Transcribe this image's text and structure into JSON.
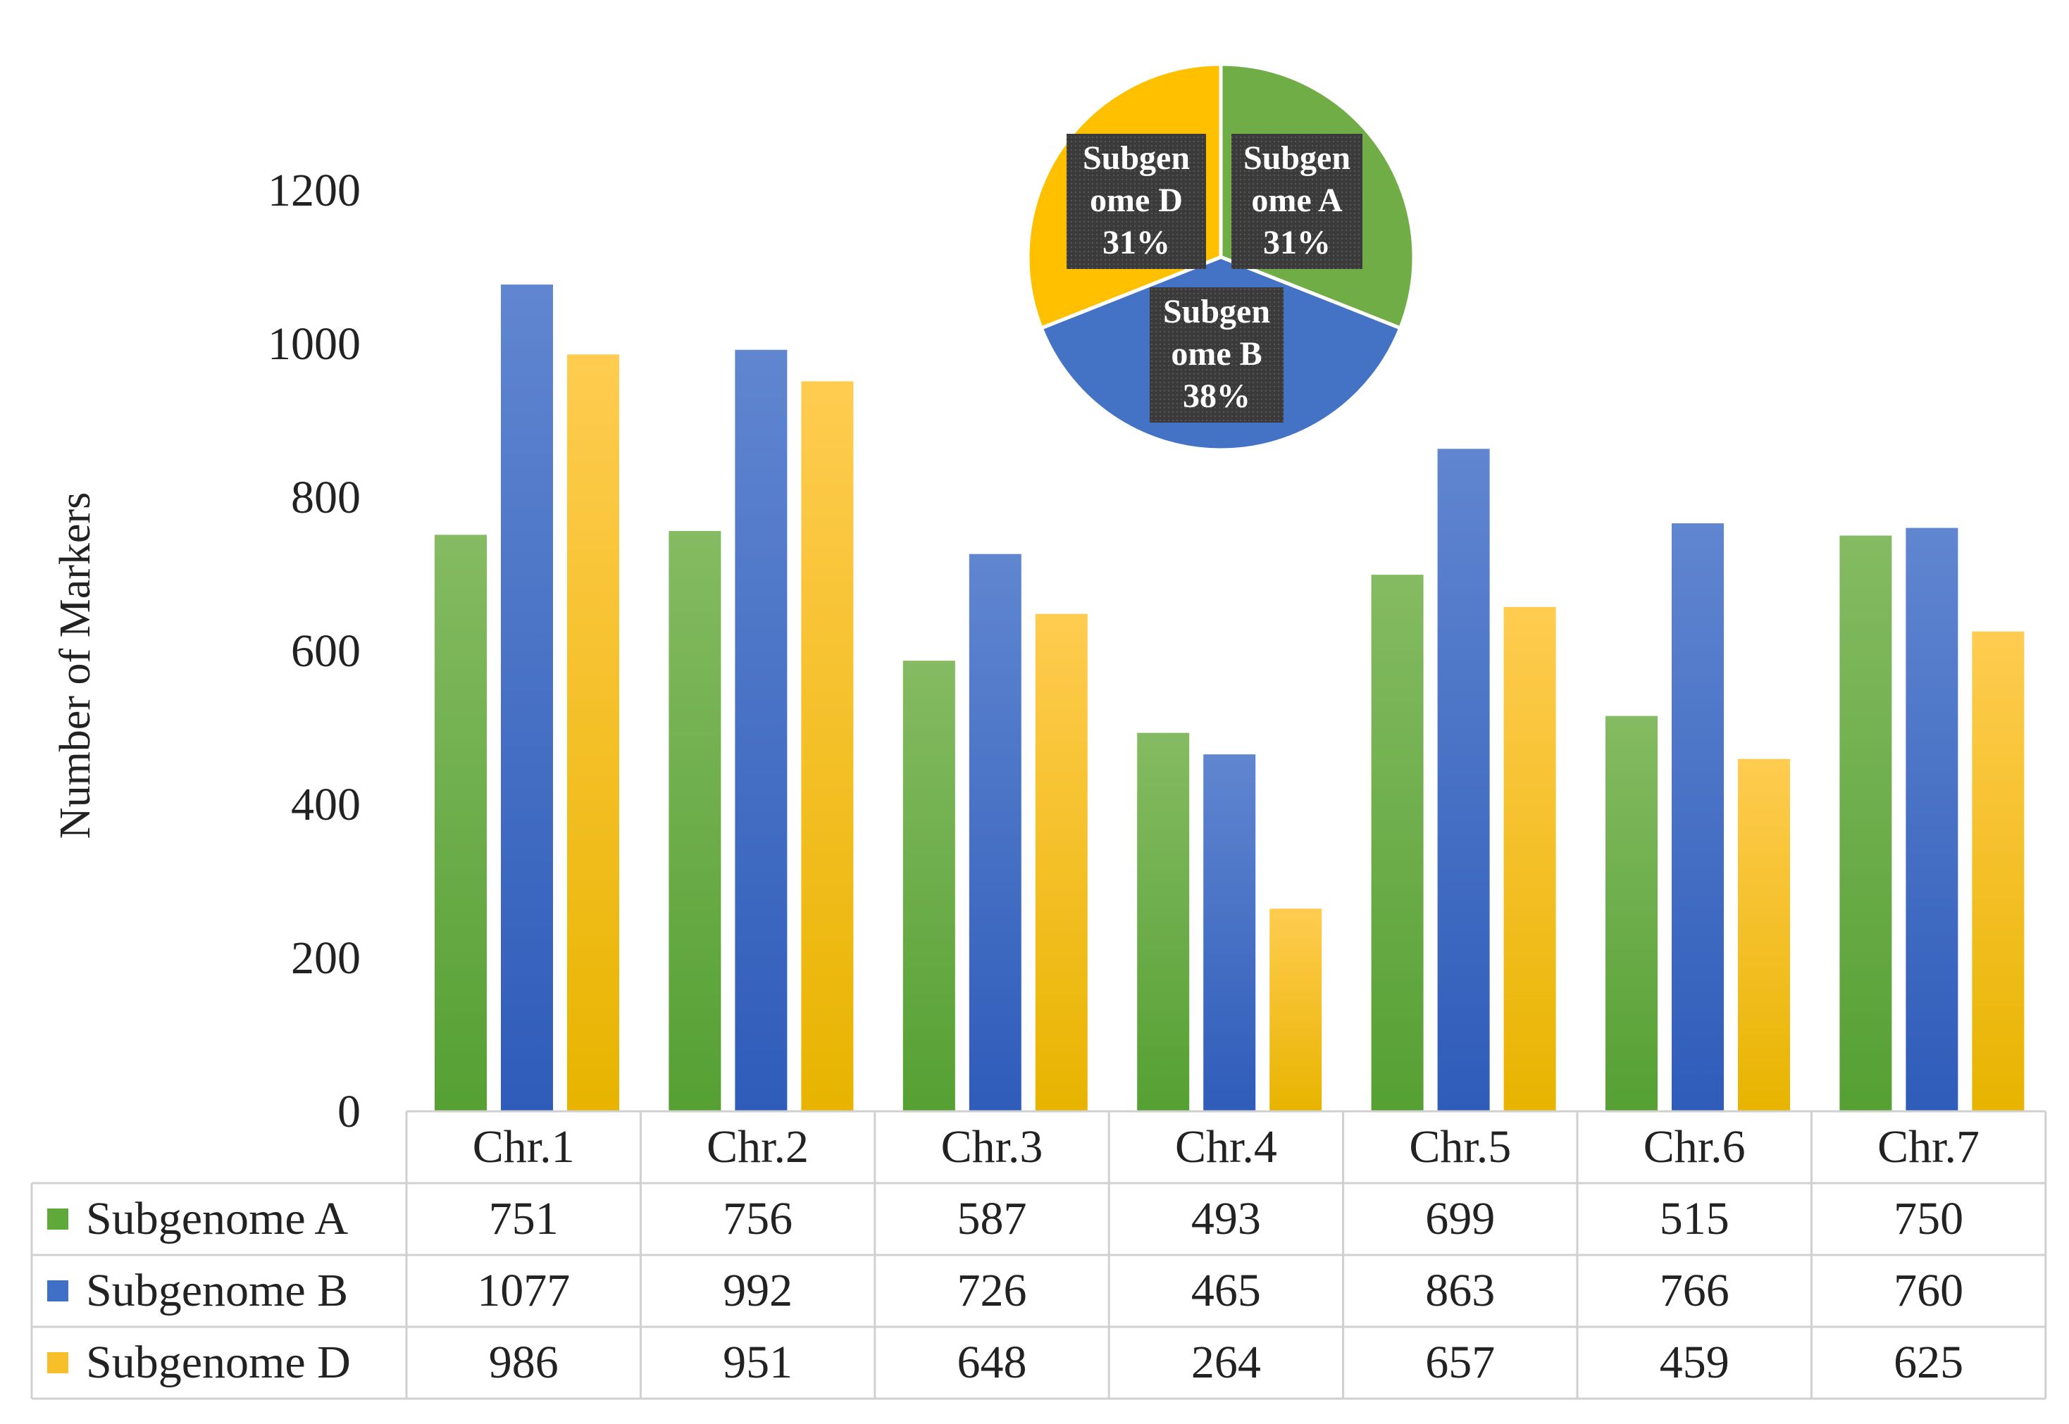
{
  "chart_data": [
    {
      "type": "bar",
      "ylabel": "Number of Markers",
      "ylim": [
        0,
        1200
      ],
      "yticks": [
        0,
        200,
        400,
        600,
        800,
        1000,
        1200
      ],
      "categories": [
        "Chr.1",
        "Chr.2",
        "Chr.3",
        "Chr.4",
        "Chr.5",
        "Chr.6",
        "Chr.7"
      ],
      "series": [
        {
          "name": "Subgenome A",
          "color": "#5fa93b",
          "values": [
            751,
            756,
            587,
            493,
            699,
            515,
            750
          ]
        },
        {
          "name": "Subgenome B",
          "color": "#3f6fc6",
          "values": [
            1077,
            992,
            726,
            465,
            863,
            766,
            760
          ]
        },
        {
          "name": "Subgenome D",
          "color": "#f7c02a",
          "values": [
            986,
            951,
            648,
            264,
            657,
            459,
            625
          ]
        }
      ],
      "data_table": true
    },
    {
      "type": "pie",
      "slices": [
        {
          "label_lines": [
            "Subgen",
            "ome A",
            "31%"
          ],
          "value": 31,
          "color": "#70ad47"
        },
        {
          "label_lines": [
            "Subgen",
            "ome B",
            "38%"
          ],
          "value": 38,
          "color": "#4472c4"
        },
        {
          "label_lines": [
            "Subgen",
            "ome D",
            "31%"
          ],
          "value": 31,
          "color": "#ffc000"
        }
      ]
    }
  ]
}
